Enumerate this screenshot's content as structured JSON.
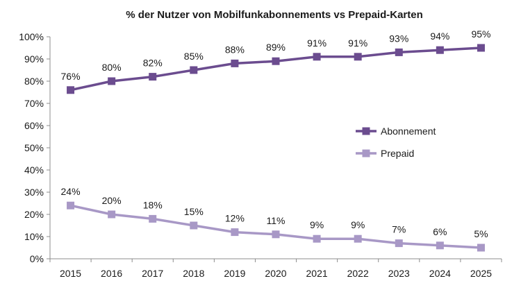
{
  "chart_data": {
    "type": "line",
    "title": "% der Nutzer von Mobilfunkabonnements vs Prepaid-Karten",
    "xlabel": "",
    "ylabel": "",
    "categories": [
      "2015",
      "2016",
      "2017",
      "2018",
      "2019",
      "2020",
      "2021",
      "2022",
      "2023",
      "2024",
      "2025"
    ],
    "ylim": [
      0,
      100
    ],
    "yticks": [
      0,
      10,
      20,
      30,
      40,
      50,
      60,
      70,
      80,
      90,
      100
    ],
    "ytick_labels": [
      "0%",
      "10%",
      "20%",
      "30%",
      "40%",
      "50%",
      "60%",
      "70%",
      "80%",
      "90%",
      "100%"
    ],
    "grid": false,
    "legend_position": "right",
    "series": [
      {
        "name": "Abonnement",
        "color": "#6b4c8f",
        "values": [
          76,
          80,
          82,
          85,
          88,
          89,
          91,
          91,
          93,
          94,
          95
        ],
        "labels": [
          "76%",
          "80%",
          "82%",
          "85%",
          "88%",
          "89%",
          "91%",
          "91%",
          "93%",
          "94%",
          "95%"
        ]
      },
      {
        "name": "Prepaid",
        "color": "#a898c6",
        "values": [
          24,
          20,
          18,
          15,
          12,
          11,
          9,
          9,
          7,
          6,
          5
        ],
        "labels": [
          "24%",
          "20%",
          "18%",
          "15%",
          "12%",
          "11%",
          "9%",
          "9%",
          "7%",
          "6%",
          "5%"
        ]
      }
    ]
  }
}
